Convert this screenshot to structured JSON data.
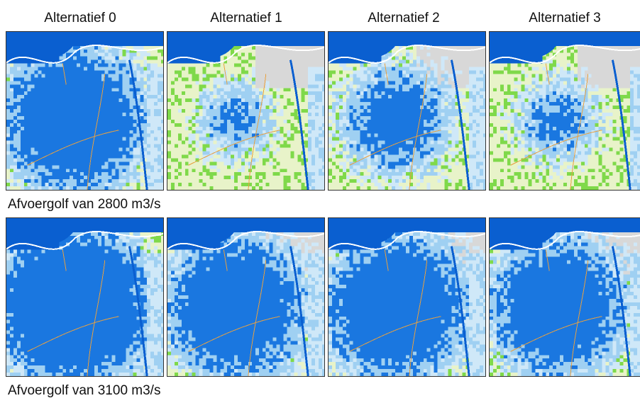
{
  "columns": [
    {
      "title": "Alternatief  0"
    },
    {
      "title": "Alternatief 1"
    },
    {
      "title": "Alternatief 2"
    },
    {
      "title": "Alternatief 3"
    }
  ],
  "rows": [
    {
      "caption": "Afvoergolf van 2800 m3/s",
      "maps": [
        {
          "flood_extent": 0.8
        },
        {
          "flood_extent": 0.38
        },
        {
          "flood_extent": 0.58
        },
        {
          "flood_extent": 0.42
        }
      ]
    },
    {
      "caption": "Afvoergolf van 3100 m3/s",
      "maps": [
        {
          "flood_extent": 0.88
        },
        {
          "flood_extent": 0.78
        },
        {
          "flood_extent": 0.8
        },
        {
          "flood_extent": 0.76
        }
      ]
    }
  ],
  "colors": {
    "deep_water": "#0a5fd0",
    "water": "#1a77e0",
    "shallow_water": "#9fd0f2",
    "light_shallow": "#cfe8f8",
    "dry_land": "#e8f3c9",
    "green_land": "#7fd94a",
    "urban": "#d8d8d8",
    "road": "#e8a040",
    "dike": "#ffffff"
  },
  "icons": {
    "map": "flood-map"
  }
}
